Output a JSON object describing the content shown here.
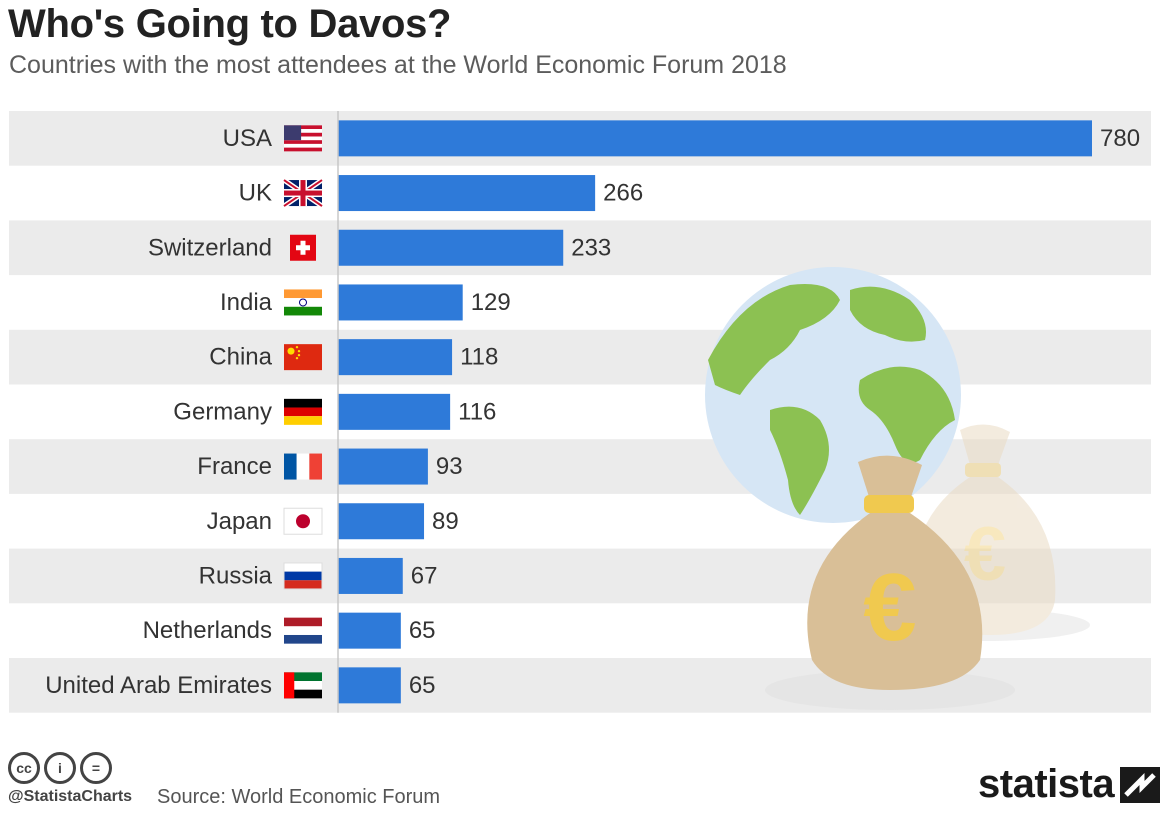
{
  "title": "Who's Going to Davos?",
  "subtitle": "Countries with the most attendees at the World Economic Forum 2018",
  "footer": {
    "handle": "@StatistaCharts",
    "source": "Source: World Economic Forum",
    "brand": "statista",
    "license_icons": [
      "cc-icon",
      "by-icon",
      "nd-icon"
    ],
    "license_glyphs": [
      "cc",
      "i",
      "="
    ]
  },
  "colors": {
    "bar": "#2e7ad9",
    "band": "#ebebeb",
    "text": "#333333"
  },
  "illustration": {
    "icons": [
      "globe-icon",
      "money-bag-icon",
      "money-bag-icon"
    ],
    "symbol": "€"
  },
  "chart_data": {
    "type": "bar",
    "orientation": "horizontal",
    "categories": [
      "USA",
      "UK",
      "Switzerland",
      "India",
      "China",
      "Germany",
      "France",
      "Japan",
      "Russia",
      "Netherlands",
      "United Arab Emirates"
    ],
    "flags": [
      "us",
      "gb",
      "ch",
      "in",
      "cn",
      "de",
      "fr",
      "jp",
      "ru",
      "nl",
      "ae"
    ],
    "values": [
      780,
      266,
      233,
      129,
      118,
      116,
      93,
      89,
      67,
      65,
      65
    ],
    "xlim": [
      0,
      780
    ],
    "title": "Who's Going to Davos?",
    "subtitle": "Countries with the most attendees at the World Economic Forum 2018",
    "xlabel": "",
    "ylabel": "",
    "grid": false,
    "legend": "none"
  }
}
